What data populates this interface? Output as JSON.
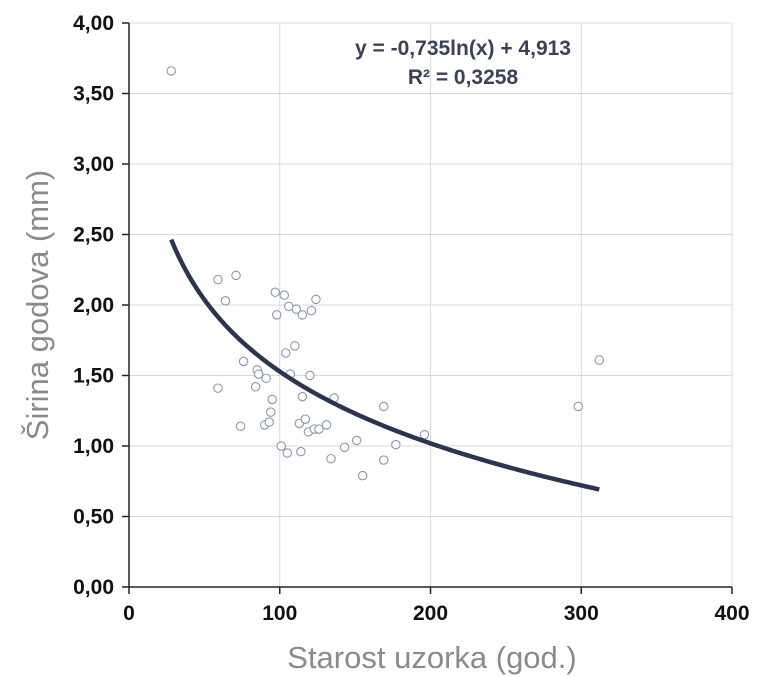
{
  "chart_data": {
    "type": "scatter",
    "title": "",
    "xlabel": "Starost uzorka (god.)",
    "ylabel": "Širina godova (mm)",
    "xlim": [
      0,
      400
    ],
    "ylim": [
      0,
      4
    ],
    "x_ticks": [
      0,
      100,
      200,
      300,
      400
    ],
    "x_tick_labels": [
      "0",
      "100",
      "200",
      "300",
      "400"
    ],
    "y_ticks": [
      0,
      0.5,
      1,
      1.5,
      2,
      2.5,
      3,
      3.5,
      4
    ],
    "y_tick_labels": [
      "0,00",
      "0,50",
      "1,00",
      "1,50",
      "2,00",
      "2,50",
      "3,00",
      "3,50",
      "4,00"
    ],
    "grid": true,
    "series": [
      {
        "points": [
          [
            28,
            3.66
          ],
          [
            59,
            2.18
          ],
          [
            64,
            2.03
          ],
          [
            71,
            2.21
          ],
          [
            59,
            1.41
          ],
          [
            74,
            1.14
          ],
          [
            76,
            1.6
          ],
          [
            84,
            1.42
          ],
          [
            85,
            1.54
          ],
          [
            86,
            1.51
          ],
          [
            90,
            1.15
          ],
          [
            91,
            1.48
          ],
          [
            93,
            1.17
          ],
          [
            94,
            1.24
          ],
          [
            95,
            1.33
          ],
          [
            97,
            2.09
          ],
          [
            98,
            1.93
          ],
          [
            101,
            1.0
          ],
          [
            103,
            2.07
          ],
          [
            104,
            1.66
          ],
          [
            105,
            0.95
          ],
          [
            106,
            1.99
          ],
          [
            107,
            1.51
          ],
          [
            110,
            1.71
          ],
          [
            111,
            1.97
          ],
          [
            113,
            1.16
          ],
          [
            114,
            0.96
          ],
          [
            115,
            1.35
          ],
          [
            115,
            1.93
          ],
          [
            117,
            1.19
          ],
          [
            119,
            1.1
          ],
          [
            120,
            1.5
          ],
          [
            121,
            1.96
          ],
          [
            123,
            1.12
          ],
          [
            124,
            2.04
          ],
          [
            126,
            1.12
          ],
          [
            131,
            1.15
          ],
          [
            134,
            0.91
          ],
          [
            136,
            1.34
          ],
          [
            143,
            0.99
          ],
          [
            151,
            1.04
          ],
          [
            155,
            0.79
          ],
          [
            169,
            1.28
          ],
          [
            169,
            0.9
          ],
          [
            177,
            1.01
          ],
          [
            196,
            1.08
          ],
          [
            298,
            1.28
          ],
          [
            312,
            1.61
          ]
        ],
        "marker": "open-circle",
        "color": "#8a97ad"
      }
    ],
    "trendline": {
      "type": "logarithmic",
      "a": -0.735,
      "b": 4.913,
      "x_range": [
        28,
        312
      ],
      "color": "#2b3450",
      "equation": "y = -0,735ln(x) + 4,913",
      "r_squared": "R² = 0,3258"
    }
  }
}
